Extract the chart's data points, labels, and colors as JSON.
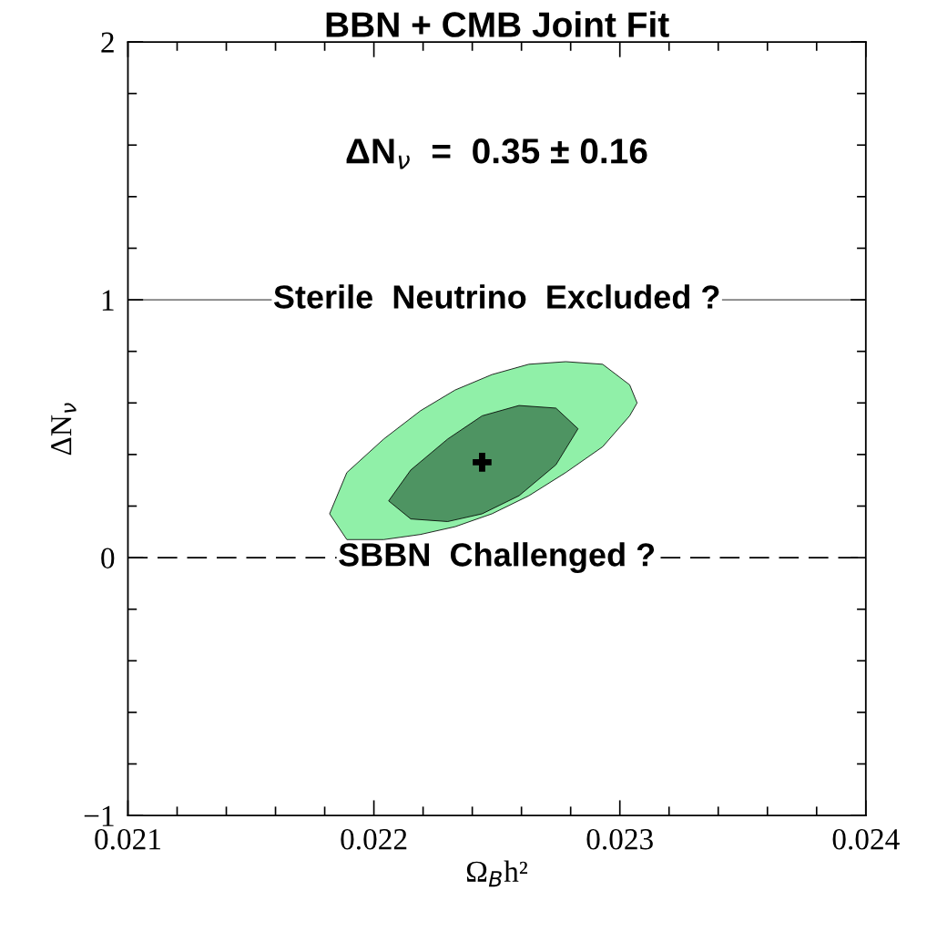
{
  "chart_data": {
    "type": "area",
    "title": "BBN + CMB Joint Fit",
    "xlabel": "Ω$_{B}$h²",
    "ylabel": "ΔN$_{ν}$",
    "annotations": [
      "ΔN$_{ν}$  =  0.35 ± 0.16"
    ],
    "series": [
      {
        "color": "#90f0a8",
        "x": [
          0.02182,
          0.02189,
          0.02204,
          0.02219,
          0.02233,
          0.02248,
          0.02263,
          0.02278,
          0.02293,
          0.02304,
          0.02307,
          0.02304,
          0.02293,
          0.02278,
          0.02263,
          0.02248,
          0.02233,
          0.02219,
          0.02204,
          0.02189
        ],
        "values": [
          0.17,
          0.33,
          0.46,
          0.57,
          0.65,
          0.71,
          0.75,
          0.76,
          0.75,
          0.67,
          0.6,
          0.55,
          0.43,
          0.33,
          0.24,
          0.17,
          0.12,
          0.09,
          0.07,
          0.07
        ]
      },
      {
        "color": "#4e9462",
        "x": [
          0.02206,
          0.02215,
          0.0223,
          0.02244,
          0.02259,
          0.02274,
          0.02283,
          0.02274,
          0.02259,
          0.02244,
          0.0223,
          0.02215
        ],
        "values": [
          0.22,
          0.34,
          0.46,
          0.55,
          0.59,
          0.58,
          0.5,
          0.36,
          0.24,
          0.17,
          0.14,
          0.15
        ]
      },
      {
        "type": "scatter",
        "color": "#000000",
        "marker": "cross",
        "x": [
          0.02244
        ],
        "values": [
          0.37
        ]
      }
    ],
    "ref_lines": [
      {
        "axis": "y",
        "value": 1,
        "label": "Sterile  Neutrino  Excluded ?",
        "color": "#808080",
        "line_style": "solid"
      },
      {
        "axis": "y",
        "value": 0,
        "label": "SBBN  Challenged ?",
        "color": "#000000",
        "line_style": "dashed"
      }
    ],
    "xlim": [
      0.021,
      0.024
    ],
    "ylim": [
      -1,
      2
    ],
    "xticks": [
      0.021,
      {
        "value": 0.0212,
        "label": null
      },
      {
        "value": 0.0214,
        "label": null
      },
      {
        "value": 0.0216,
        "label": null
      },
      {
        "value": 0.0218,
        "label": null
      },
      0.022,
      {
        "value": 0.0222,
        "label": null
      },
      {
        "value": 0.0224,
        "label": null
      },
      {
        "value": 0.0226,
        "label": null
      },
      {
        "value": 0.0228,
        "label": null
      },
      0.023,
      {
        "value": 0.0232,
        "label": null
      },
      {
        "value": 0.0234,
        "label": null
      },
      {
        "value": 0.0236,
        "label": null
      },
      {
        "value": 0.0238,
        "label": null
      },
      0.024
    ],
    "yticks": [
      {
        "value": -1,
        "label": "−1"
      },
      {
        "value": -0.8,
        "label": null
      },
      {
        "value": -0.6,
        "label": null
      },
      {
        "value": -0.4,
        "label": null
      },
      {
        "value": -0.2,
        "label": null
      },
      0,
      {
        "value": 0.2,
        "label": null
      },
      {
        "value": 0.4,
        "label": null
      },
      {
        "value": 0.6,
        "label": null
      },
      {
        "value": 0.8,
        "label": null
      },
      1,
      {
        "value": 1.2,
        "label": null
      },
      {
        "value": 1.4,
        "label": null
      },
      {
        "value": 1.6,
        "label": null
      },
      {
        "value": 1.8,
        "label": null
      },
      2
    ],
    "grid": false,
    "legend": false
  }
}
